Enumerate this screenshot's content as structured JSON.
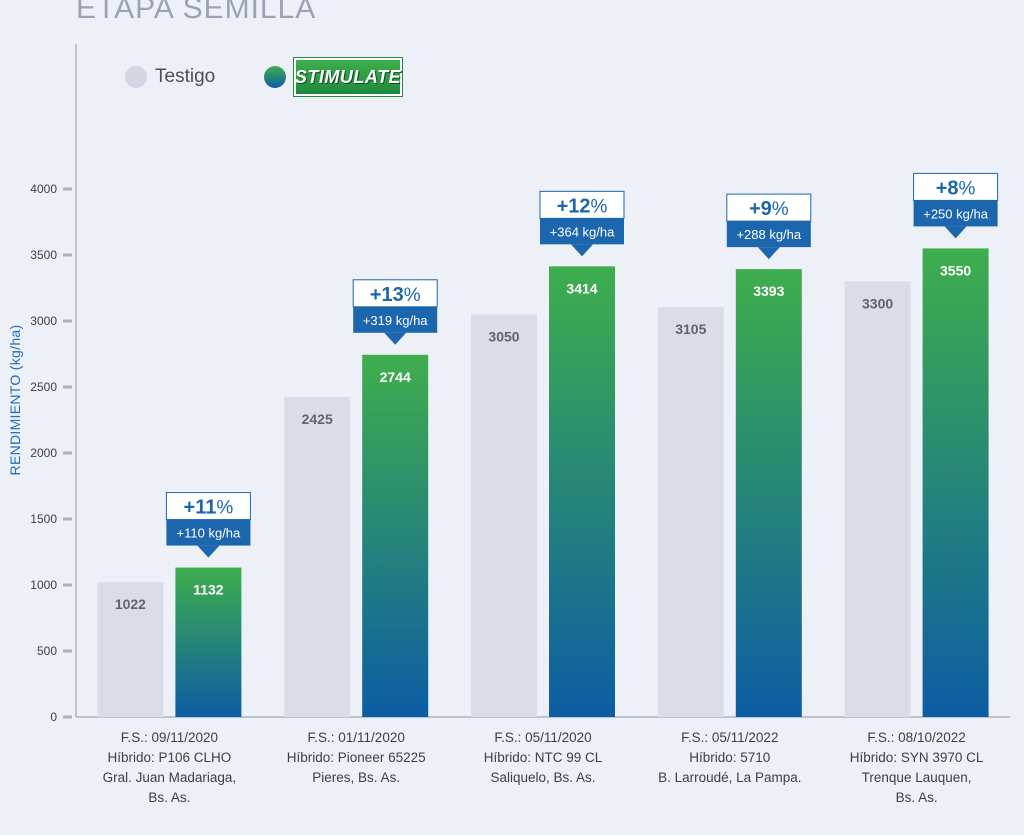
{
  "title": "ETAPA SEMILLA",
  "legend": {
    "testigo_label": "Testigo",
    "stimulate_label": "STIMULATE",
    "testigo_color": "#dadde8",
    "stimulate_color_top": "#3fae4c",
    "stimulate_color_bottom": "#0c5da4"
  },
  "chart_data": {
    "type": "bar",
    "title": "ETAPA SEMILLA",
    "xlabel": "",
    "ylabel": "RENDIMIENTO (kg/ha)",
    "ylim": [
      0,
      4000
    ],
    "yticks": [
      0,
      500,
      1000,
      1500,
      2000,
      2500,
      3000,
      3500,
      4000
    ],
    "grid": false,
    "legend_position": "top-left",
    "categories": [
      [
        "F.S.: 09/11/2020",
        "Híbrido: P106 CLHO",
        "Gral. Juan Madariaga,",
        "Bs. As."
      ],
      [
        "F.S.: 01/11/2020",
        "Híbrido: Pioneer 65225",
        "Pieres, Bs. As."
      ],
      [
        "F.S.: 05/11/2020",
        "Híbrido: NTC 99 CL",
        "Saliquelo, Bs. As."
      ],
      [
        "F.S.: 05/11/2022",
        "Híbrido: 5710",
        "B. Larroudé, La Pampa."
      ],
      [
        "F.S.: 08/10/2022",
        "Híbrido: SYN 3970 CL",
        "Trenque Lauquen,",
        "Bs. As."
      ]
    ],
    "series": [
      {
        "name": "Testigo",
        "values": [
          1022,
          2425,
          3050,
          3105,
          3300
        ]
      },
      {
        "name": "STIMULATE",
        "values": [
          1132,
          2744,
          3414,
          3393,
          3550
        ]
      }
    ],
    "annotations": [
      {
        "percent": "+11",
        "delta": "+110 kg/ha"
      },
      {
        "percent": "+13",
        "delta": "+319 kg/ha"
      },
      {
        "percent": "+12",
        "delta": "+364 kg/ha"
      },
      {
        "percent": "+9",
        "delta": "+288 kg/ha"
      },
      {
        "percent": "+8",
        "delta": "+250 kg/ha"
      }
    ]
  }
}
